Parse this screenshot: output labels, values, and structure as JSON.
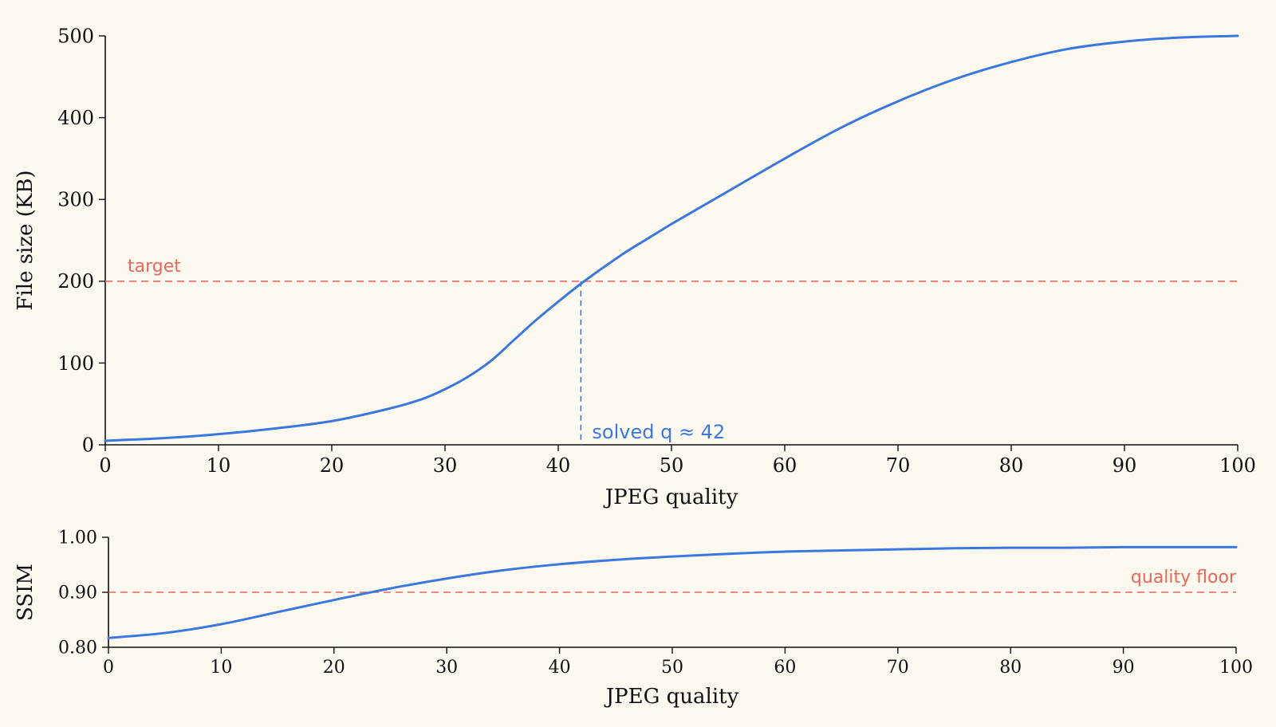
{
  "chart_data": [
    {
      "type": "line",
      "xlabel": "JPEG quality",
      "ylabel": "File size (KB)",
      "xlim": [
        0,
        100
      ],
      "ylim": [
        0,
        500
      ],
      "xticks": [
        0,
        10,
        20,
        30,
        40,
        50,
        60,
        70,
        80,
        90,
        100
      ],
      "yticks": [
        0,
        100,
        200,
        300,
        400,
        500
      ],
      "grid": false,
      "series": [
        {
          "color": "#3a78e0",
          "x": [
            0,
            5,
            10,
            15,
            20,
            25,
            28,
            30,
            32,
            34,
            36,
            38,
            40,
            42,
            44,
            46,
            48,
            50,
            52,
            55,
            60,
            65,
            70,
            75,
            80,
            85,
            90,
            95,
            100
          ],
          "y": [
            5,
            8,
            13,
            20,
            29,
            44,
            56,
            68,
            83,
            102,
            127,
            152,
            175,
            197,
            217,
            236,
            253,
            270,
            286,
            310,
            350,
            388,
            420,
            447,
            468,
            484,
            493,
            498,
            500
          ]
        }
      ],
      "reference_lines": [
        {
          "orientation": "horizontal",
          "y": 200,
          "label": "target",
          "color": "#e8675a"
        },
        {
          "orientation": "vertical",
          "x": 42,
          "label": "solved q ≈ 42",
          "color": "#3a78e0"
        }
      ]
    },
    {
      "type": "line",
      "xlabel": "JPEG quality",
      "ylabel": "SSIM",
      "xlim": [
        0,
        100
      ],
      "ylim": [
        0.8,
        1.0
      ],
      "xticks": [
        0,
        10,
        20,
        30,
        40,
        50,
        60,
        70,
        80,
        90,
        100
      ],
      "yticks": [
        "0.80",
        "0.90",
        "1.00"
      ],
      "grid": false,
      "series": [
        {
          "color": "#3a78e0",
          "x": [
            0,
            5,
            10,
            15,
            20,
            25,
            30,
            35,
            40,
            45,
            50,
            55,
            60,
            65,
            70,
            75,
            80,
            85,
            90,
            95,
            100
          ],
          "y": [
            0.817,
            0.826,
            0.842,
            0.864,
            0.886,
            0.907,
            0.925,
            0.94,
            0.951,
            0.959,
            0.965,
            0.97,
            0.974,
            0.976,
            0.978,
            0.98,
            0.981,
            0.981,
            0.982,
            0.982,
            0.982
          ]
        }
      ],
      "reference_lines": [
        {
          "orientation": "horizontal",
          "y": 0.9,
          "label": "quality floor",
          "color": "#e8675a"
        }
      ]
    }
  ]
}
